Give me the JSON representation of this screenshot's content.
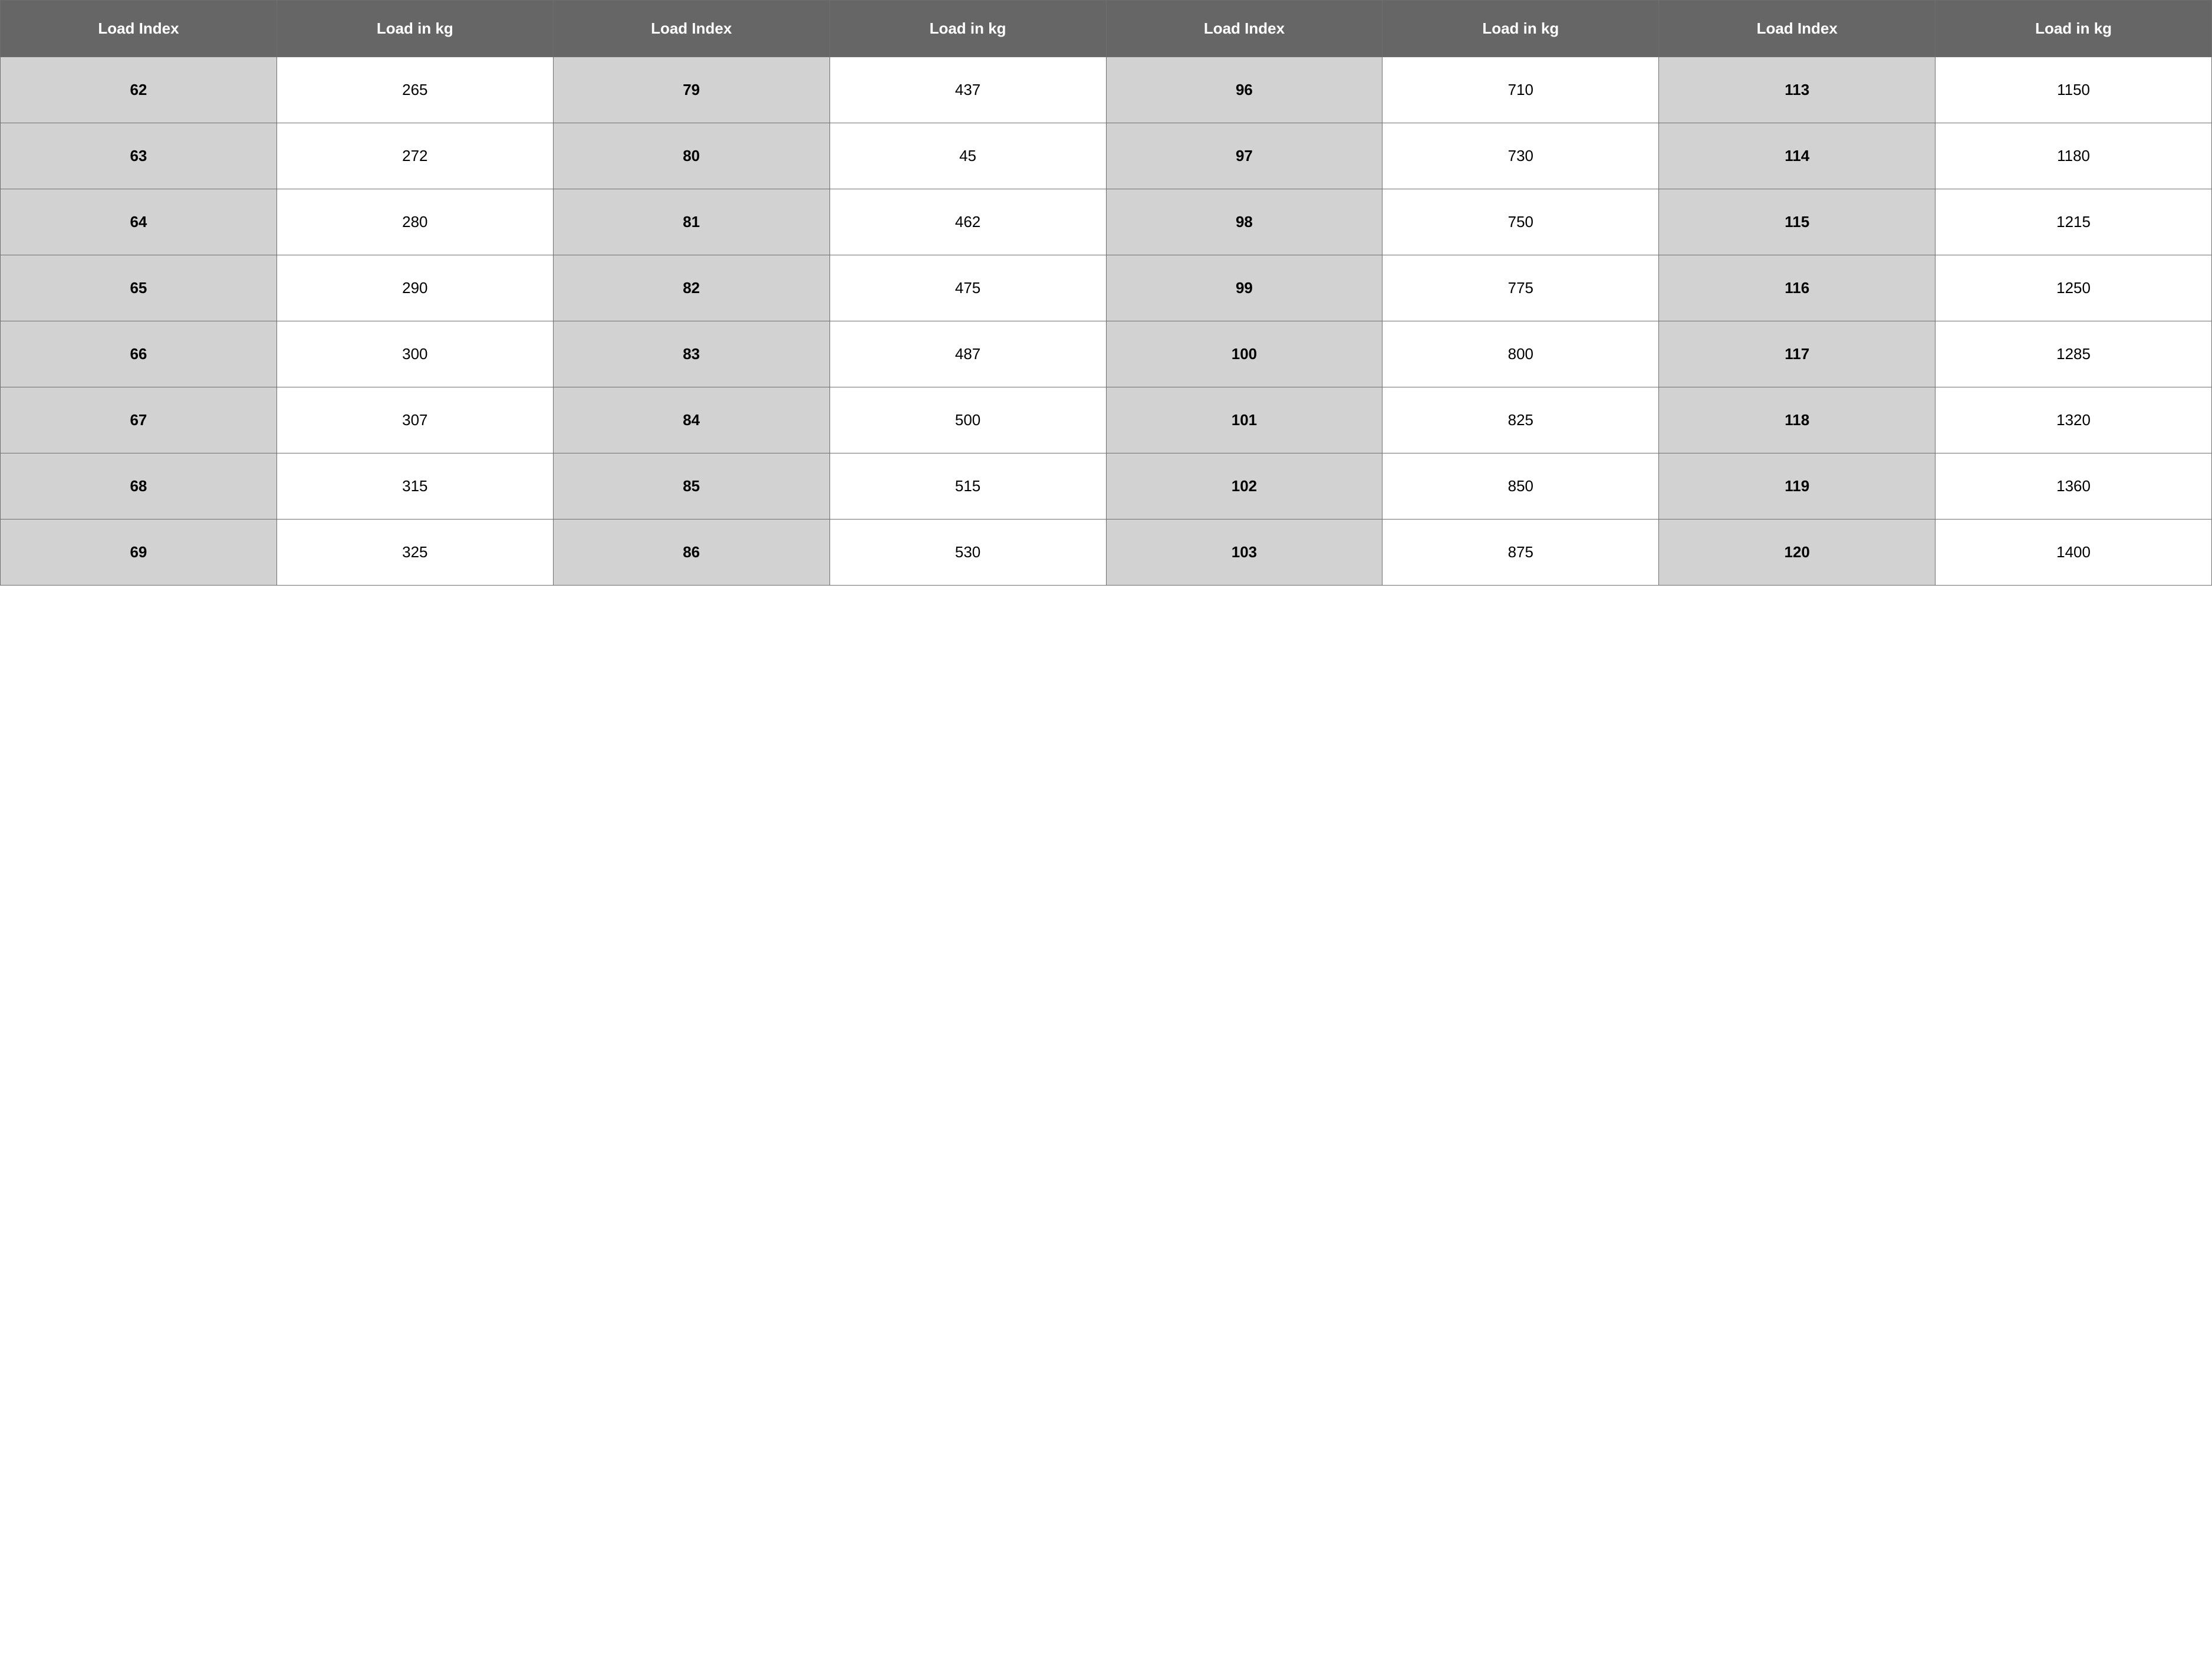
{
  "table": {
    "header_bg": "#666666",
    "header_fg": "#ffffff",
    "idx_bg": "#d2d2d2",
    "val_bg": "#ffffff",
    "border_color": "#6f6f6f",
    "header_fontsize": 26,
    "cell_fontsize": 26,
    "columns": [
      "Load Index",
      "Load in kg",
      "Load Index",
      "Load in kg",
      "Load Index",
      "Load in kg",
      "Load Index",
      "Load in kg"
    ],
    "rows": [
      [
        "62",
        "265",
        "79",
        "437",
        "96",
        "710",
        "113",
        "1150"
      ],
      [
        "63",
        "272",
        "80",
        "45",
        "97",
        "730",
        "114",
        "1180"
      ],
      [
        "64",
        "280",
        "81",
        "462",
        "98",
        "750",
        "115",
        "1215"
      ],
      [
        "65",
        "290",
        "82",
        "475",
        "99",
        "775",
        "116",
        "1250"
      ],
      [
        "66",
        "300",
        "83",
        "487",
        "100",
        "800",
        "117",
        "1285"
      ],
      [
        "67",
        "307",
        "84",
        "500",
        "101",
        "825",
        "118",
        "1320"
      ],
      [
        "68",
        "315",
        "85",
        "515",
        "102",
        "850",
        "119",
        "1360"
      ],
      [
        "69",
        "325",
        "86",
        "530",
        "103",
        "875",
        "120",
        "1400"
      ]
    ]
  }
}
